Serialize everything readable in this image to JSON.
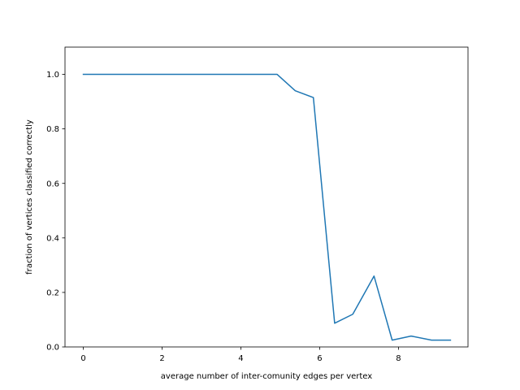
{
  "chart_data": {
    "type": "line",
    "title": "",
    "xlabel": "average number of inter-comunity edges per vertex",
    "ylabel": "fraction of vertices classified correctly",
    "xlim": [
      -0.465,
      9.765
    ],
    "ylim": [
      0.0,
      1.1
    ],
    "x_ticks": [
      0,
      2,
      4,
      6,
      8
    ],
    "y_ticks": [
      0.0,
      0.2,
      0.4,
      0.6,
      0.8,
      1.0
    ],
    "x_tick_labels": [
      "0",
      "2",
      "4",
      "6",
      "8"
    ],
    "y_tick_labels": [
      "0.0",
      "0.2",
      "0.4",
      "0.6",
      "0.8",
      "1.0"
    ],
    "grid": false,
    "series": [
      {
        "color": "#1f77b4",
        "x": [
          0.0,
          0.48,
          0.96,
          1.44,
          1.92,
          2.4,
          2.88,
          3.36,
          3.84,
          4.32,
          4.92,
          5.38,
          5.84,
          6.38,
          6.84,
          7.38,
          7.84,
          8.32,
          8.84,
          9.32
        ],
        "y": [
          1.0,
          1.0,
          1.0,
          1.0,
          1.0,
          1.0,
          1.0,
          1.0,
          1.0,
          1.0,
          1.0,
          0.94,
          0.915,
          0.087,
          0.12,
          0.26,
          0.025,
          0.04,
          0.025,
          0.025
        ]
      }
    ]
  }
}
